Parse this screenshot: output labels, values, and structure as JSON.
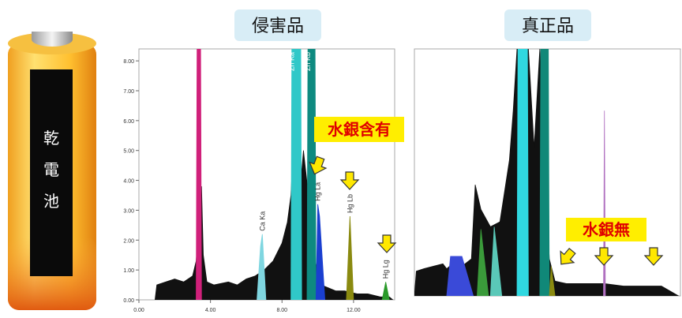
{
  "battery": {
    "label": [
      "乾",
      "電",
      "池"
    ]
  },
  "chart_data": [
    {
      "type": "spectrum",
      "title": "侵害品",
      "annotation": "水銀含有",
      "xlim": [
        0,
        14.3
      ],
      "ylim": [
        0,
        8.4
      ],
      "xticks": [
        {
          "value": 0,
          "label": "0.00"
        },
        {
          "value": 4,
          "label": "4.00"
        },
        {
          "value": 8,
          "label": "8.00"
        },
        {
          "value": 12,
          "label": "12.00"
        }
      ],
      "yticks": [
        {
          "value": 0,
          "label": "0.00"
        },
        {
          "value": 1,
          "label": "1.00"
        },
        {
          "value": 2,
          "label": "2.00"
        },
        {
          "value": 3,
          "label": "3.00"
        },
        {
          "value": 4,
          "label": "4.00"
        },
        {
          "value": 5,
          "label": "5.00"
        },
        {
          "value": 6,
          "label": "6.00"
        },
        {
          "value": 7,
          "label": "7.00"
        },
        {
          "value": 8,
          "label": "8.00"
        }
      ],
      "series": [
        {
          "color": "#111111",
          "x": [
            0.9,
            1.0,
            1.5,
            2.0,
            2.5,
            3.0,
            3.2,
            3.5,
            3.6,
            3.8,
            4.2,
            5.0,
            5.5,
            6.0,
            6.5,
            7.0,
            7.5,
            8.0,
            8.3,
            8.5,
            8.6,
            9.0,
            9.2,
            9.9,
            10.2,
            10.6,
            11.0,
            11.5,
            12.2,
            12.8,
            13.5,
            14.0,
            14.2
          ],
          "values": [
            0,
            0.5,
            0.6,
            0.7,
            0.6,
            0.8,
            1.3,
            3.8,
            1.5,
            0.6,
            0.5,
            0.6,
            0.5,
            0.7,
            0.8,
            1.0,
            1.3,
            1.9,
            2.6,
            3.5,
            4.8,
            3.6,
            5.0,
            1.2,
            0.5,
            0.4,
            0.3,
            0.3,
            0.2,
            0.2,
            0.1,
            0.1,
            0
          ]
        },
        {
          "color": "#d0207a",
          "x": [
            3.2,
            3.25,
            3.45,
            3.5
          ],
          "values": [
            0,
            8.4,
            8.4,
            0
          ]
        },
        {
          "name": "Ca Ka",
          "color": "#7fd6e0",
          "x": [
            6.6,
            6.8,
            6.9,
            7.1
          ],
          "values": [
            0,
            1.8,
            2.2,
            0
          ]
        },
        {
          "name": "Zn Ka",
          "color": "#30c8c8",
          "x": [
            8.5,
            8.55,
            9.05,
            9.1
          ],
          "values": [
            0,
            8.4,
            8.4,
            0
          ]
        },
        {
          "name": "Zn Kb",
          "color": "#0e8a80",
          "x": [
            9.4,
            9.45,
            9.85,
            9.9
          ],
          "values": [
            0,
            8.4,
            8.4,
            0
          ]
        },
        {
          "name": "Hg La",
          "color": "#1a3fd0",
          "x": [
            9.9,
            10.0,
            10.1,
            10.4
          ],
          "values": [
            0,
            3.2,
            2.8,
            0
          ]
        },
        {
          "name": "Hg Lb",
          "color": "#8a8a10",
          "x": [
            11.6,
            11.8,
            12.0
          ],
          "values": [
            0,
            2.8,
            0
          ]
        },
        {
          "name": "Hg Lg",
          "color": "#2a9a2a",
          "x": [
            13.6,
            13.8,
            14.0
          ],
          "values": [
            0,
            0.6,
            0
          ]
        }
      ]
    },
    {
      "type": "spectrum",
      "title": "真正品",
      "annotation": "水銀無",
      "xlim": [
        1,
        15
      ],
      "ylim": [
        0,
        10
      ],
      "series": [
        {
          "color": "#111111",
          "x": [
            1.0,
            1.1,
            1.5,
            2.0,
            2.5,
            2.7,
            3.0,
            3.5,
            4.0,
            4.2,
            4.5,
            5.0,
            5.5,
            6.0,
            6.2,
            6.4,
            7.0,
            7.3,
            7.6,
            8.1,
            8.4,
            9,
            10,
            11,
            12,
            13,
            14,
            14.9
          ],
          "values": [
            0,
            1.0,
            1.1,
            1.2,
            1.3,
            1.1,
            1.3,
            1.2,
            1.5,
            4.5,
            3.5,
            2.8,
            3.0,
            5.5,
            7.5,
            10,
            10,
            6,
            10,
            1.5,
            0.6,
            0.5,
            0.5,
            0.5,
            0.4,
            0.4,
            0.4,
            0
          ]
        },
        {
          "color": "#3a4ad8",
          "x": [
            2.7,
            2.9,
            3.5,
            4.1
          ],
          "values": [
            0,
            1.6,
            1.6,
            0
          ]
        },
        {
          "color": "#3a9a3a",
          "x": [
            4.3,
            4.5,
            4.9
          ],
          "values": [
            0,
            2.7,
            0
          ]
        },
        {
          "color": "#5ac8b8",
          "x": [
            5.0,
            5.2,
            5.6
          ],
          "values": [
            0,
            2.8,
            0
          ]
        },
        {
          "color": "#30d8e0",
          "x": [
            6.4,
            6.45,
            6.95,
            7.0
          ],
          "values": [
            0,
            10,
            10,
            0
          ]
        },
        {
          "color": "#108878",
          "x": [
            7.6,
            7.65,
            8.05,
            8.1
          ],
          "values": [
            0,
            10,
            10,
            0
          ]
        },
        {
          "color": "#8a8a10",
          "x": [
            8.1,
            8.2,
            8.4
          ],
          "values": [
            0,
            1.2,
            0
          ]
        },
        {
          "color": "#b070c0",
          "x": [
            10.95,
            11.0,
            11.05
          ],
          "values": [
            0,
            7.5,
            0
          ]
        }
      ]
    }
  ]
}
